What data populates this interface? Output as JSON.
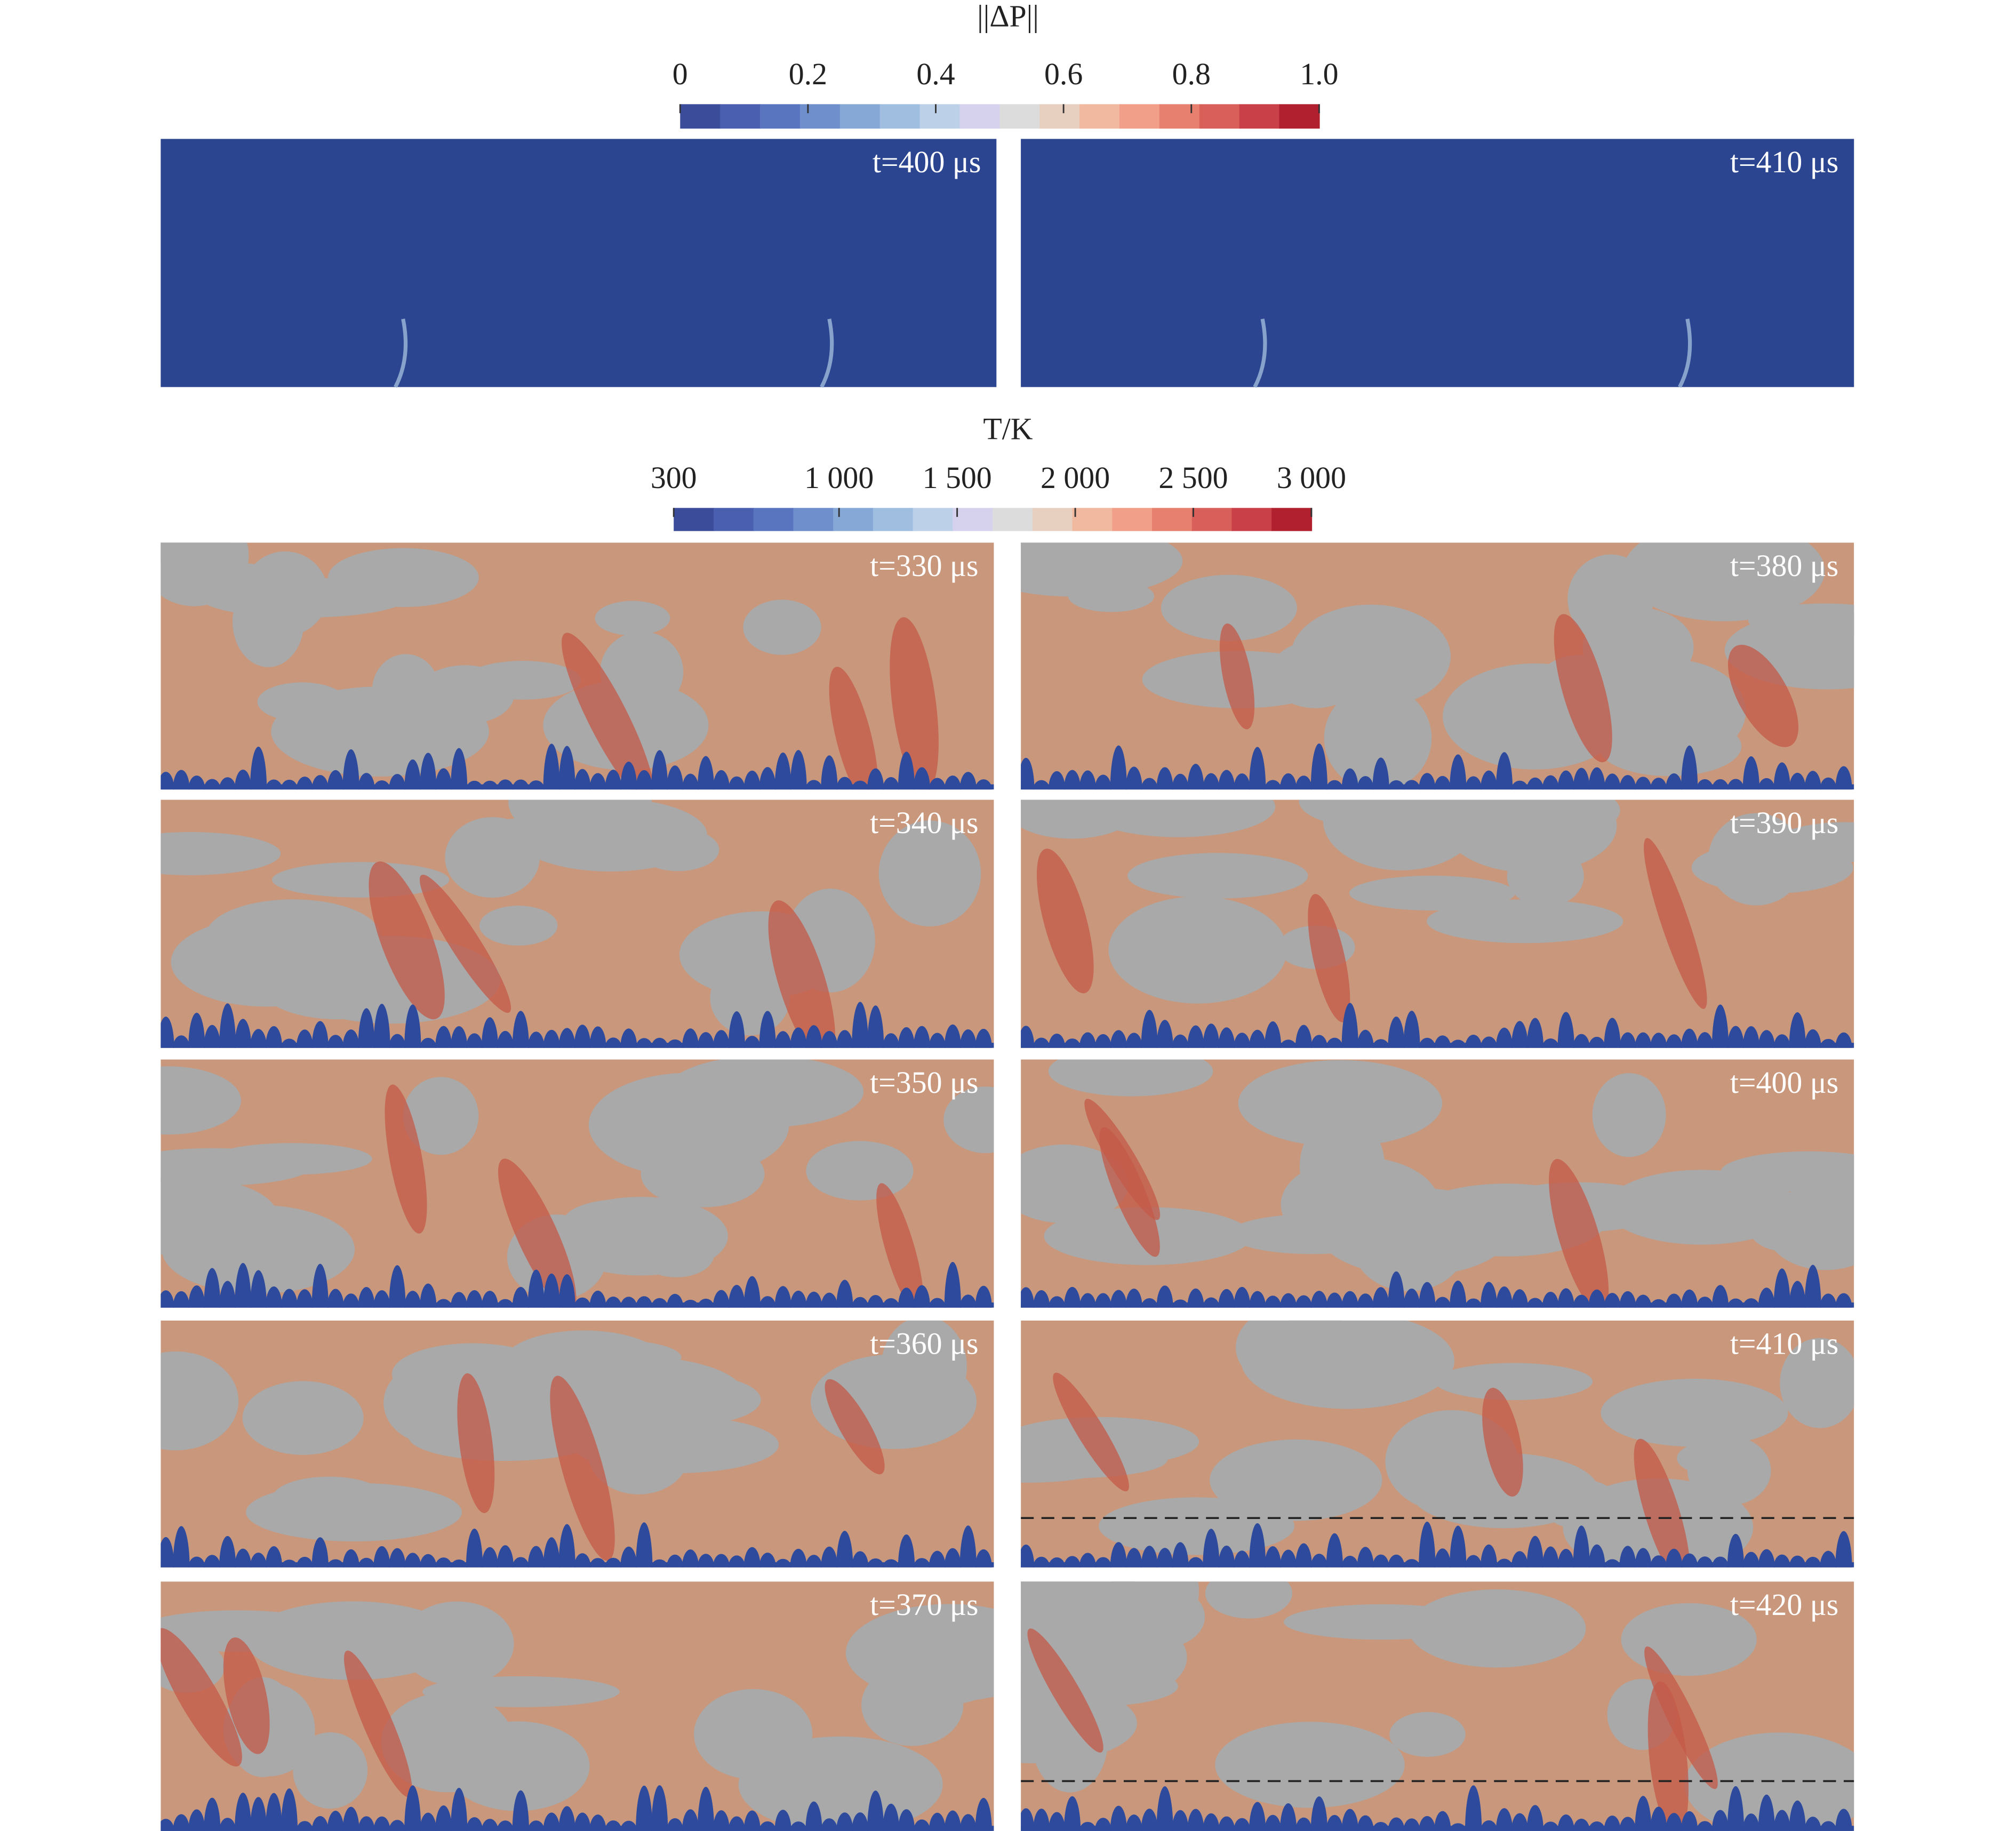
{
  "colorbars": [
    {
      "title": "||ΔP||",
      "lim": [
        0,
        1
      ],
      "ticks": [
        0,
        0.2,
        0.4,
        0.6,
        0.8,
        {
          "value": 1,
          "label": "1.0"
        }
      ],
      "colormap": [
        "#3b4c9a",
        "#4a5fb0",
        "#5a75c0",
        "#6e8fcc",
        "#86a8d6",
        "#a0bfe0",
        "#bcd0e8",
        "#d6d2ee",
        "#dcdcdc",
        "#e8d0c0",
        "#f0b9a0",
        "#f19f88",
        "#e8806f",
        "#d9605a",
        "#c94048",
        "#b0202e"
      ]
    },
    {
      "title": "T/K",
      "lim": [
        300,
        3000
      ],
      "ticks": [
        300,
        {
          "value": 1000,
          "label": "1 000"
        },
        {
          "value": 1500,
          "label": "1 500"
        },
        {
          "value": 2000,
          "label": "2 000"
        },
        {
          "value": 2500,
          "label": "2 500"
        },
        {
          "value": 3000,
          "label": "3 000"
        }
      ],
      "colormap": [
        "#3b4c9a",
        "#4a5fb0",
        "#5a75c0",
        "#6e8fcc",
        "#86a8d6",
        "#a0bfe0",
        "#bcd0e8",
        "#d6d2ee",
        "#dcdcdc",
        "#e8d0c0",
        "#f0b9a0",
        "#f19f88",
        "#e8806f",
        "#d9605a",
        "#c94048",
        "#b0202e"
      ]
    }
  ],
  "pressure_panels": [
    "t=400 μs",
    "t=410 μs"
  ],
  "temperature_panels": [
    "t=330 μs",
    "t=340 μs",
    "t=350 μs",
    "t=360 μs",
    "t=370 μs",
    "t=380 μs",
    "t=390 μs",
    "t=400 μs",
    "t=410 μs",
    "t=420 μs"
  ]
}
